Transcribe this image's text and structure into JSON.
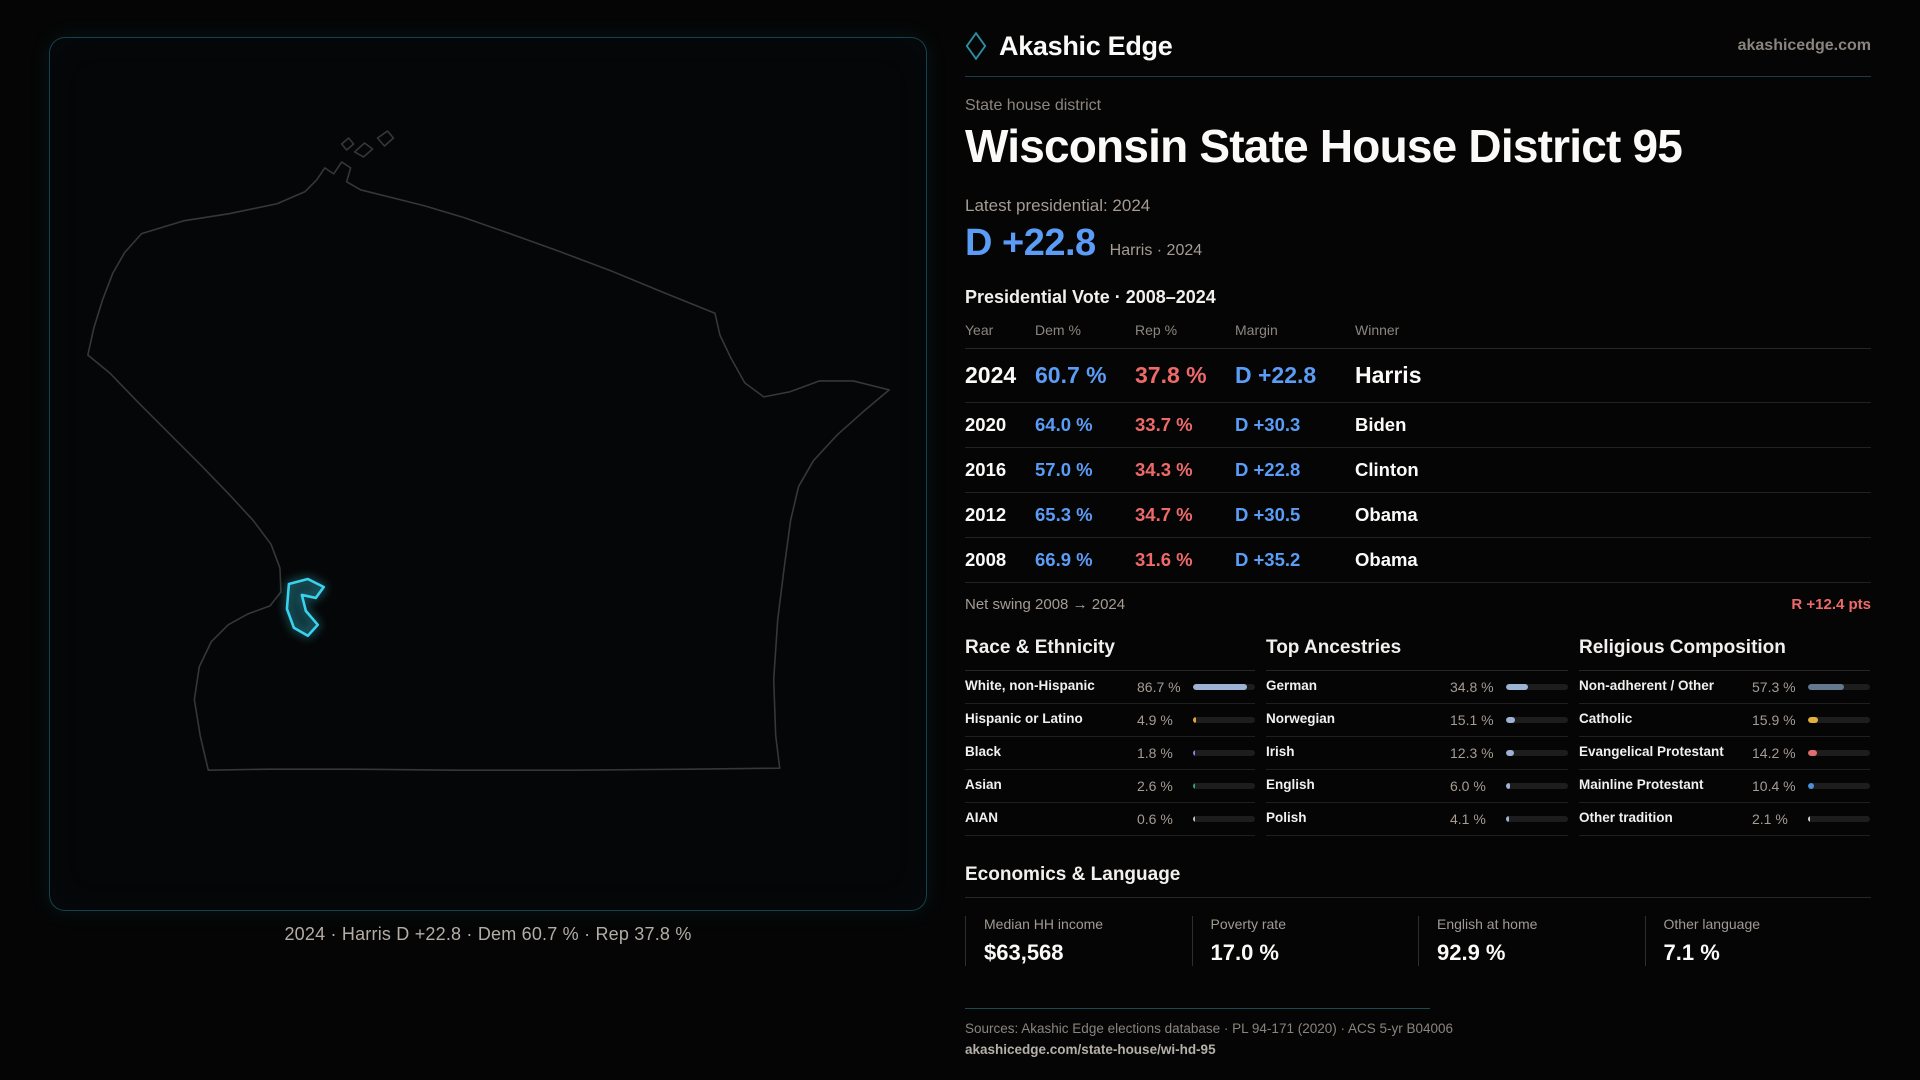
{
  "brand": {
    "name": "Akashic Edge",
    "site": "akashicedge.com"
  },
  "page": {
    "kicker": "State house district",
    "title": "Wisconsin State House District 95",
    "latest_label": "Latest presidential: 2024",
    "headline": {
      "margin": "D +22.8",
      "context": "Harris · 2024"
    }
  },
  "map": {
    "caption": "2024 · Harris D +22.8 · Dem 60.7 % · Rep 37.8 %"
  },
  "vote_table": {
    "title": "Presidential Vote · 2008–2024",
    "columns": [
      "Year",
      "Dem %",
      "Rep %",
      "Margin",
      "Winner"
    ],
    "rows": [
      {
        "year": "2024",
        "dem": "60.7 %",
        "rep": "37.8 %",
        "margin": "D +22.8",
        "winner": "Harris",
        "emphasis": true
      },
      {
        "year": "2020",
        "dem": "64.0 %",
        "rep": "33.7 %",
        "margin": "D +30.3",
        "winner": "Biden",
        "emphasis": false
      },
      {
        "year": "2016",
        "dem": "57.0 %",
        "rep": "34.3 %",
        "margin": "D +22.8",
        "winner": "Clinton",
        "emphasis": false
      },
      {
        "year": "2012",
        "dem": "65.3 %",
        "rep": "34.7 %",
        "margin": "D +30.5",
        "winner": "Obama",
        "emphasis": false
      },
      {
        "year": "2008",
        "dem": "66.9 %",
        "rep": "31.6 %",
        "margin": "D +35.2",
        "winner": "Obama",
        "emphasis": false
      }
    ],
    "net_swing": {
      "label": "Net swing 2008 → 2024",
      "value": "R +12.4 pts"
    }
  },
  "demographics": {
    "race": {
      "title": "Race & Ethnicity",
      "rows": [
        {
          "label": "White, non-Hispanic",
          "value": "86.7 %",
          "pct": 86.7,
          "color": "#9db3d4"
        },
        {
          "label": "Hispanic or Latino",
          "value": "4.9 %",
          "pct": 4.9,
          "color": "#e8a33c"
        },
        {
          "label": "Black",
          "value": "1.8 %",
          "pct": 1.8,
          "color": "#8f7fe8"
        },
        {
          "label": "Asian",
          "value": "2.6 %",
          "pct": 2.6,
          "color": "#2aa878"
        },
        {
          "label": "AIAN",
          "value": "0.6 %",
          "pct": 0.6,
          "color": "#b9c4cf"
        }
      ]
    },
    "ancestries": {
      "title": "Top Ancestries",
      "rows": [
        {
          "label": "German",
          "value": "34.8 %",
          "pct": 34.8,
          "color": "#9db3d4"
        },
        {
          "label": "Norwegian",
          "value": "15.1 %",
          "pct": 15.1,
          "color": "#9db3d4"
        },
        {
          "label": "Irish",
          "value": "12.3 %",
          "pct": 12.3,
          "color": "#9db3d4"
        },
        {
          "label": "English",
          "value": "6.0 %",
          "pct": 6.0,
          "color": "#9db3d4"
        },
        {
          "label": "Polish",
          "value": "4.1 %",
          "pct": 4.1,
          "color": "#9db3d4"
        }
      ]
    },
    "religion": {
      "title": "Religious Composition",
      "rows": [
        {
          "label": "Non-adherent / Other",
          "value": "57.3 %",
          "pct": 57.3,
          "color": "#64778c"
        },
        {
          "label": "Catholic",
          "value": "15.9 %",
          "pct": 15.9,
          "color": "#e2b13c"
        },
        {
          "label": "Evangelical Protestant",
          "value": "14.2 %",
          "pct": 14.2,
          "color": "#e06e6e"
        },
        {
          "label": "Mainline Protestant",
          "value": "10.4 %",
          "pct": 10.4,
          "color": "#4c90dc"
        },
        {
          "label": "Other tradition",
          "value": "2.1 %",
          "pct": 2.1,
          "color": "#cfcfcf"
        }
      ]
    }
  },
  "economics": {
    "title": "Economics & Language",
    "stats": [
      {
        "label": "Median HH income",
        "value": "$63,568"
      },
      {
        "label": "Poverty rate",
        "value": "17.0 %"
      },
      {
        "label": "English at home",
        "value": "92.9 %"
      },
      {
        "label": "Other language",
        "value": "7.1 %"
      }
    ]
  },
  "footer": {
    "sources": "Sources: Akashic Edge elections database · PL 94-171 (2020) · ACS 5-yr B04006",
    "permalink": "akashicedge.com/state-house/wi-hd-95"
  },
  "colors": {
    "dem": "#5b9cf6",
    "rep": "#ee6a6a",
    "accent": "#3ad2ec",
    "page_bg": "#050505"
  }
}
